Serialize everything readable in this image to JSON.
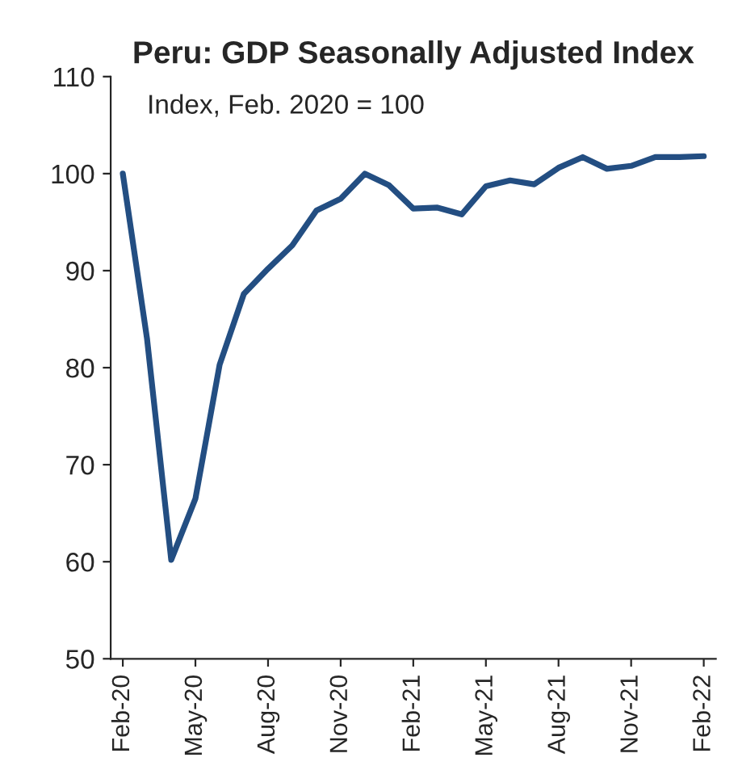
{
  "chart_data": {
    "type": "line",
    "title": "Peru: GDP Seasonally Adjusted Index",
    "annotations": [
      "Index, Feb. 2020 = 100"
    ],
    "categories": [
      "Feb-20",
      null,
      null,
      "May-20",
      null,
      null,
      "Aug-20",
      null,
      null,
      "Nov-20",
      null,
      null,
      "Feb-21",
      null,
      null,
      "May-21",
      null,
      null,
      "Aug-21",
      null,
      null,
      "Nov-21",
      null,
      null,
      "Feb-22"
    ],
    "series": [
      {
        "color": "#234e82",
        "values": [
          100,
          83,
          60.2,
          66.5,
          80.3,
          87.6,
          90.2,
          92.6,
          96.2,
          97.4,
          100.0,
          98.8,
          96.4,
          96.5,
          95.8,
          98.7,
          99.3,
          98.9,
          100.6,
          101.7,
          100.5,
          100.8,
          101.7,
          101.7,
          101.8
        ]
      }
    ],
    "ylim": [
      50,
      110
    ],
    "yticks": [
      50,
      60,
      70,
      80,
      90,
      100,
      110
    ],
    "grid": false,
    "legend": false,
    "marker": "none",
    "line_style": "solid"
  }
}
